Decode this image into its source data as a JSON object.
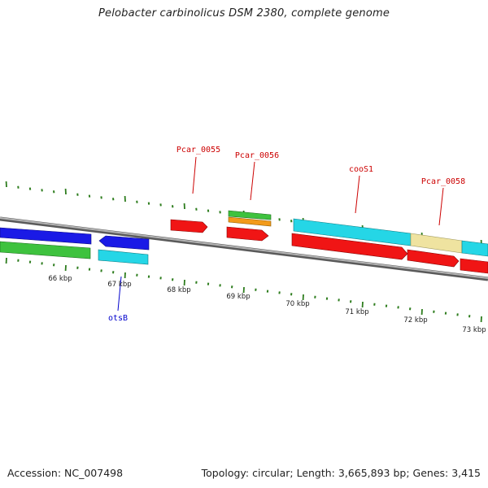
{
  "header": {
    "title": "Pelobacter carbinolicus DSM 2380, complete genome"
  },
  "footer": {
    "accession": "Accession: NC_007498",
    "summary": "Topology: circular; Length: 3,665,893 bp; Genes: 3,415"
  },
  "kbp_labels": [
    "66 kbp",
    "67 kbp",
    "68 kbp",
    "69 kbp",
    "70 kbp",
    "71 kbp",
    "72 kbp",
    "73 kbp"
  ],
  "gene_labels": {
    "pcar_0055": "Pcar_0055",
    "pcar_0056": "Pcar_0056",
    "coos1": "cooS1",
    "pcar_0058": "Pcar_0058",
    "otsb": "otsB"
  },
  "colors": {
    "backbone": "#8a8a8a",
    "tick": "#2e7d1e",
    "blue": "#1a1ae6",
    "green": "#3ec23e",
    "cyan": "#25d6e6",
    "red": "#f01515",
    "orange": "#f29a1a",
    "khaki": "#efe3a0",
    "label_red": "#cc0000",
    "label_blue": "#0000cc"
  }
}
